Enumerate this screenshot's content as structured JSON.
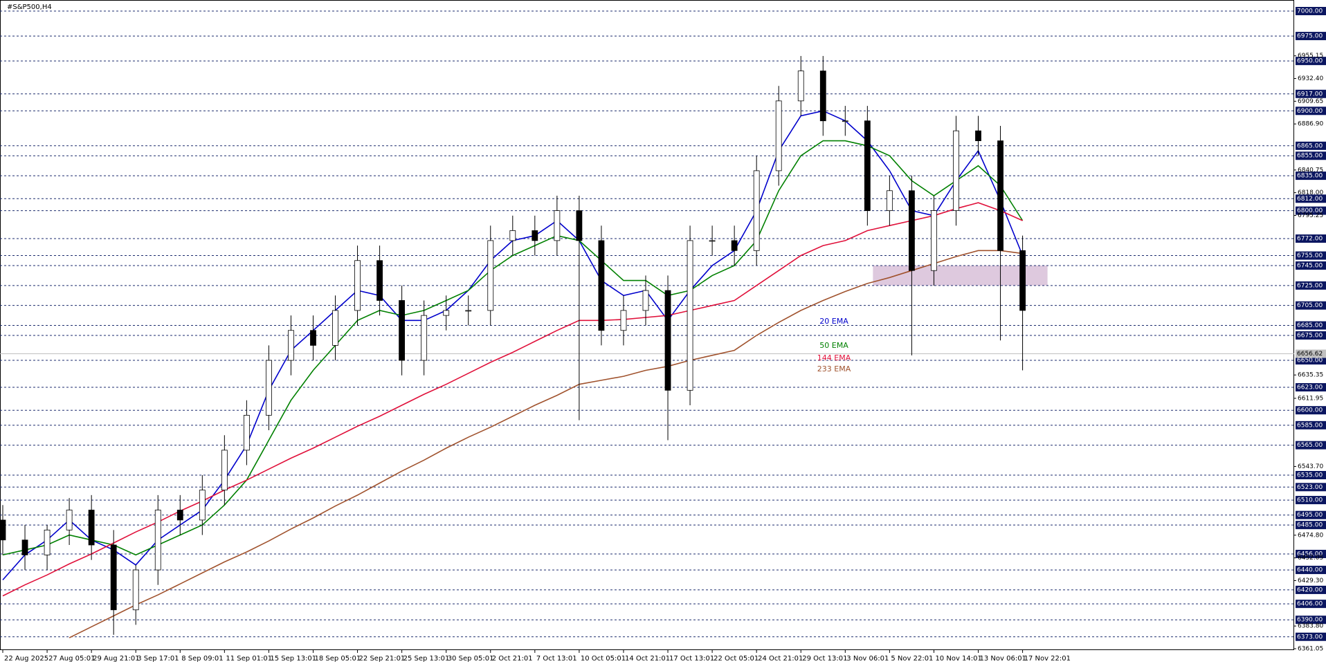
{
  "chart_data": {
    "type": "candlestick",
    "title": "#S&P500,H4",
    "x": [
      0,
      8,
      16,
      24,
      32,
      40,
      48,
      56,
      64,
      72,
      80,
      88,
      96,
      104,
      112,
      120,
      128,
      136,
      144,
      152,
      160,
      168,
      176,
      184,
      192,
      200,
      208,
      216,
      224,
      232,
      240,
      248,
      256,
      264,
      272,
      280,
      288,
      296,
      304,
      312,
      320,
      328,
      336,
      344,
      352,
      360,
      368
    ],
    "open": [
      6490,
      6470,
      6455,
      6480,
      6500,
      6465,
      6400,
      6440,
      6500,
      6490,
      6520,
      6560,
      6595,
      6650,
      6680,
      6665,
      6700,
      6750,
      6710,
      6650,
      6695,
      6700,
      6700,
      6770,
      6780,
      6770,
      6800,
      6770,
      6680,
      6700,
      6720,
      6620,
      6770,
      6770,
      6760,
      6840,
      6910,
      6940,
      6890,
      6890,
      6800,
      6820,
      6740,
      6800,
      6880,
      6870,
      6760
    ],
    "high": [
      6505,
      6485,
      6485,
      6512,
      6515,
      6480,
      6445,
      6515,
      6515,
      6535,
      6575,
      6610,
      6665,
      6695,
      6695,
      6715,
      6765,
      6765,
      6725,
      6710,
      6715,
      6715,
      6785,
      6795,
      6795,
      6815,
      6815,
      6785,
      6715,
      6735,
      6735,
      6785,
      6785,
      6785,
      6855,
      6925,
      6955,
      6955,
      6905,
      6905,
      6835,
      6835,
      6815,
      6895,
      6895,
      6885,
      6775
    ],
    "low": [
      6455,
      6440,
      6440,
      6465,
      6450,
      6375,
      6385,
      6425,
      6475,
      6475,
      6505,
      6545,
      6580,
      6635,
      6650,
      6650,
      6685,
      6695,
      6635,
      6635,
      6680,
      6685,
      6685,
      6755,
      6755,
      6755,
      6590,
      6665,
      6665,
      6685,
      6570,
      6605,
      6755,
      6745,
      6745,
      6825,
      6895,
      6875,
      6875,
      6785,
      6785,
      6655,
      6725,
      6785,
      6855,
      6670,
      6640
    ],
    "close": [
      6470,
      6455,
      6480,
      6500,
      6465,
      6400,
      6440,
      6500,
      6490,
      6520,
      6560,
      6595,
      6650,
      6680,
      6665,
      6700,
      6750,
      6710,
      6650,
      6695,
      6700,
      6700,
      6770,
      6780,
      6770,
      6800,
      6770,
      6680,
      6700,
      6720,
      6620,
      6770,
      6770,
      6760,
      6840,
      6910,
      6940,
      6890,
      6890,
      6800,
      6820,
      6740,
      6800,
      6880,
      6870,
      6760,
      6700
    ],
    "series": [
      {
        "name": "20 EMA",
        "color": "#0000cc",
        "values": [
          6430,
          6455,
          6470,
          6490,
          6470,
          6460,
          6445,
          6470,
          6485,
          6500,
          6530,
          6565,
          6620,
          6660,
          6680,
          6700,
          6720,
          6715,
          6690,
          6690,
          6700,
          6720,
          6750,
          6770,
          6775,
          6790,
          6770,
          6730,
          6715,
          6720,
          6690,
          6720,
          6745,
          6760,
          6800,
          6860,
          6895,
          6900,
          6890,
          6870,
          6840,
          6800,
          6795,
          6830,
          6860,
          6810,
          6755
        ]
      },
      {
        "name": "50 EMA",
        "color": "#008000",
        "values": [
          6455,
          6460,
          6465,
          6475,
          6470,
          6465,
          6455,
          6465,
          6475,
          6485,
          6505,
          6530,
          6570,
          6610,
          6640,
          6665,
          6690,
          6700,
          6695,
          6700,
          6710,
          6720,
          6740,
          6755,
          6765,
          6775,
          6770,
          6750,
          6730,
          6730,
          6715,
          6720,
          6735,
          6745,
          6770,
          6820,
          6855,
          6870,
          6870,
          6865,
          6855,
          6830,
          6815,
          6830,
          6845,
          6825,
          6790
        ]
      },
      {
        "name": "144 EMA",
        "color": "#e0103a",
        "values": [
          6414,
          6425,
          6435,
          6446,
          6456,
          6467,
          6478,
          6488,
          6499,
          6509,
          6520,
          6530,
          6541,
          6552,
          6562,
          6573,
          6584,
          6594,
          6605,
          6616,
          6626,
          6637,
          6648,
          6658,
          6669,
          6680,
          6690,
          6690,
          6691,
          6693,
          6695,
          6700,
          6705,
          6710,
          6725,
          6740,
          6755,
          6765,
          6770,
          6780,
          6785,
          6790,
          6795,
          6802,
          6808,
          6800,
          6790
        ]
      },
      {
        "name": "233 EMA",
        "color": "#a0522d",
        "values": [
          null,
          null,
          null,
          6372,
          6383,
          6394,
          6405,
          6415,
          6426,
          6437,
          6448,
          6458,
          6469,
          6481,
          6492,
          6504,
          6515,
          6527,
          6539,
          6550,
          6562,
          6573,
          6583,
          6594,
          6605,
          6615,
          6626,
          6630,
          6634,
          6640,
          6644,
          6650,
          6655,
          6660,
          6675,
          6688,
          6700,
          6710,
          6719,
          6727,
          6733,
          6740,
          6747,
          6754,
          6760,
          6760,
          6757
        ]
      }
    ],
    "zone": {
      "xlim": [
        314,
        377
      ],
      "ylim": [
        6725,
        6745
      ],
      "color": "#d8bfd8"
    },
    "last_price": 6656.62,
    "xlim": [
      -1,
      466
    ],
    "ylim": [
      6361.05,
      7000
    ],
    "xticks": [
      {
        "value": 0,
        "label": "22 Aug 2025"
      },
      {
        "value": 16,
        "label": "27 Aug 05:01"
      },
      {
        "value": 32,
        "label": "29 Aug 21:01"
      },
      {
        "value": 48,
        "label": "3 Sep 17:01"
      },
      {
        "value": 64,
        "label": "8 Sep 09:01"
      },
      {
        "value": 80,
        "label": "11 Sep 01:01"
      },
      {
        "value": 96,
        "label": "15 Sep 13:01"
      },
      {
        "value": 112,
        "label": "18 Sep 05:01"
      },
      {
        "value": 128,
        "label": "22 Sep 21:01"
      },
      {
        "value": 144,
        "label": "25 Sep 13:01"
      },
      {
        "value": 160,
        "label": "30 Sep 05:01"
      },
      {
        "value": 176,
        "label": "2 Oct 21:01"
      },
      {
        "value": 192,
        "label": "7 Oct 13:01"
      },
      {
        "value": 208,
        "label": "10 Oct 05:01"
      },
      {
        "value": 224,
        "label": "14 Oct 21:01"
      },
      {
        "value": 240,
        "label": "17 Oct 13:01"
      },
      {
        "value": 256,
        "label": "22 Oct 05:01"
      },
      {
        "value": 272,
        "label": "24 Oct 21:01"
      },
      {
        "value": 288,
        "label": "29 Oct 13:01"
      },
      {
        "value": 304,
        "label": "3 Nov 06:01"
      },
      {
        "value": 320,
        "label": "5 Nov 22:01"
      },
      {
        "value": 336,
        "label": "10 Nov 14:01"
      },
      {
        "value": 352,
        "label": "13 Nov 06:01"
      },
      {
        "value": 368,
        "label": "17 Nov 22:01"
      }
    ],
    "yticks": [
      {
        "value": 7000,
        "label": "7000.00"
      },
      {
        "value": 6975,
        "label": "6975.00"
      },
      {
        "value": 6950,
        "label": "6950.00"
      },
      {
        "value": 6917,
        "label": "6917.00"
      },
      {
        "value": 6900,
        "label": "6900.00"
      },
      {
        "value": 6865,
        "label": "6865.00"
      },
      {
        "value": 6855,
        "label": "6855.00"
      },
      {
        "value": 6835,
        "label": "6835.00"
      },
      {
        "value": 6812,
        "label": "6812.00"
      },
      {
        "value": 6800,
        "label": "6800.00"
      },
      {
        "value": 6772,
        "label": "6772.00"
      },
      {
        "value": 6755,
        "label": "6755.00"
      },
      {
        "value": 6745,
        "label": "6745.00"
      },
      {
        "value": 6725,
        "label": "6725.00"
      },
      {
        "value": 6705,
        "label": "6705.00"
      },
      {
        "value": 6685,
        "label": "6685.00"
      },
      {
        "value": 6675,
        "label": "6675.00"
      },
      {
        "value": 6650,
        "label": "6650.00"
      },
      {
        "value": 6623,
        "label": "6623.00"
      },
      {
        "value": 6600,
        "label": "6600.00"
      },
      {
        "value": 6585,
        "label": "6585.00"
      },
      {
        "value": 6565,
        "label": "6565.00"
      },
      {
        "value": 6535,
        "label": "6535.00"
      },
      {
        "value": 6523,
        "label": "6523.00"
      },
      {
        "value": 6510,
        "label": "6510.00"
      },
      {
        "value": 6495,
        "label": "6495.00"
      },
      {
        "value": 6485,
        "label": "6485.00"
      },
      {
        "value": 6456,
        "label": "6456.00"
      },
      {
        "value": 6440,
        "label": "6440.00"
      },
      {
        "value": 6420,
        "label": "6420.00"
      },
      {
        "value": 6406,
        "label": "6406.00"
      },
      {
        "value": 6390,
        "label": "6390.00"
      },
      {
        "value": 6373,
        "label": "6373.00"
      }
    ],
    "yticks_plain": [
      6955.15,
      {
        "value": 6932.4,
        "label": "6932.40"
      },
      6909.65,
      {
        "value": 6886.9,
        "label": "6886.90"
      },
      6840.75,
      {
        "value": 6818,
        "label": "6818.00"
      },
      6795.25,
      6635.35,
      6611.95,
      {
        "value": 6543.7,
        "label": "6543.70"
      },
      {
        "value": 6474.8,
        "label": "6474.80"
      },
      6452.05,
      {
        "value": 6429.3,
        "label": "6429.30"
      },
      {
        "value": 6383.8,
        "label": "6383.80"
      },
      6361.05
    ]
  }
}
